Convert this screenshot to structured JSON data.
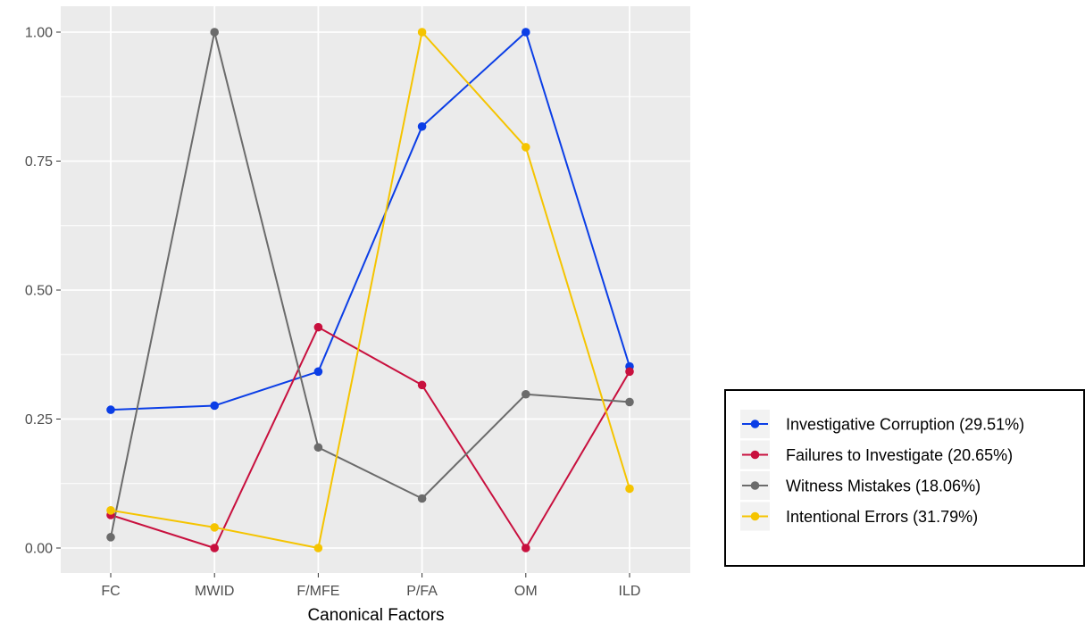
{
  "chart_data": {
    "type": "line",
    "title": "",
    "xlabel": "Canonical Factors",
    "ylabel": "",
    "categories": [
      "FC",
      "MWID",
      "F/MFE",
      "P/FA",
      "OM",
      "ILD"
    ],
    "ylim": [
      0,
      1
    ],
    "yticks": [
      0,
      0.25,
      0.5,
      0.75,
      1
    ],
    "ytick_labels": [
      "0.00",
      "0.25",
      "0.50",
      "0.75",
      "1.00"
    ],
    "grid": true,
    "legend_position": "right",
    "background": "#ebebeb",
    "series": [
      {
        "name": "Investigative Corruption (29.51%)",
        "color": "#0b3ee6",
        "values": [
          0.268,
          0.276,
          0.342,
          0.817,
          1.0,
          0.352
        ]
      },
      {
        "name": "Failures to Investigate (20.65%)",
        "color": "#c8103e",
        "values": [
          0.064,
          0.0,
          0.428,
          0.316,
          0.0,
          0.342
        ]
      },
      {
        "name": "Witness Mistakes (18.06%)",
        "color": "#6b6b6b",
        "values": [
          0.021,
          1.0,
          0.195,
          0.096,
          0.298,
          0.283
        ]
      },
      {
        "name": "Intentional Errors (31.79%)",
        "color": "#f5c400",
        "values": [
          0.073,
          0.04,
          0.0,
          1.0,
          0.777,
          0.115
        ]
      }
    ]
  }
}
